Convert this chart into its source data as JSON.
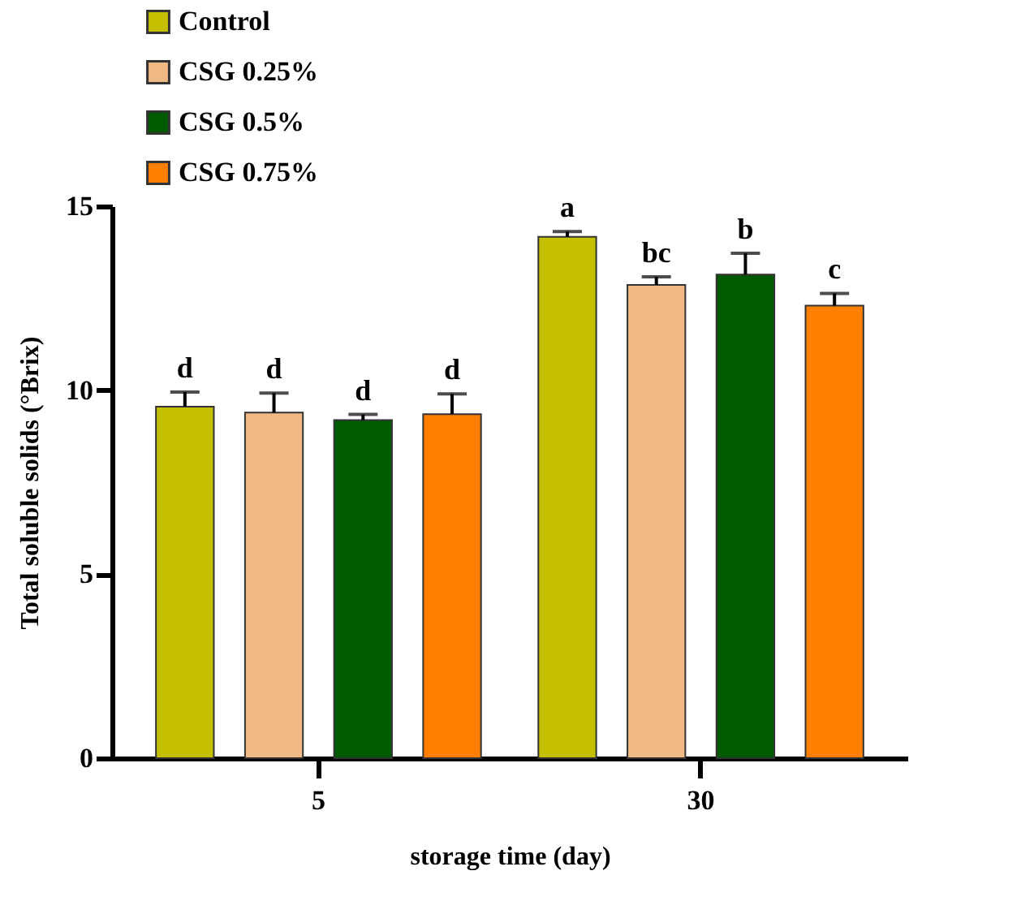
{
  "chart_data": {
    "type": "bar",
    "xlabel": "storage time (day)",
    "ylabel": "Total soluble solids (°Brix)",
    "categories": [
      "5",
      "30"
    ],
    "series": [
      {
        "name": "Control",
        "color": "#c4c000",
        "values": [
          9.55,
          14.17
        ],
        "errors": [
          0.4,
          0.14
        ],
        "value_labels": [
          "d",
          "a"
        ]
      },
      {
        "name": "CSG 0.25%",
        "color": "#f0b882",
        "values": [
          9.39,
          12.86
        ],
        "errors": [
          0.53,
          0.22
        ],
        "value_labels": [
          "d",
          "bc"
        ]
      },
      {
        "name": "CSG 0.5%",
        "color": "#005a00",
        "values": [
          9.19,
          13.14
        ],
        "errors": [
          0.15,
          0.58
        ],
        "value_labels": [
          "d",
          "b"
        ]
      },
      {
        "name": "CSG 0.75%",
        "color": "#ff8000",
        "values": [
          9.35,
          12.3
        ],
        "errors": [
          0.55,
          0.33
        ],
        "value_labels": [
          "d",
          "c"
        ]
      }
    ],
    "ylim": [
      0,
      15
    ],
    "yticks": [
      0,
      5,
      10,
      15
    ],
    "grid": false,
    "legend": "top left"
  }
}
